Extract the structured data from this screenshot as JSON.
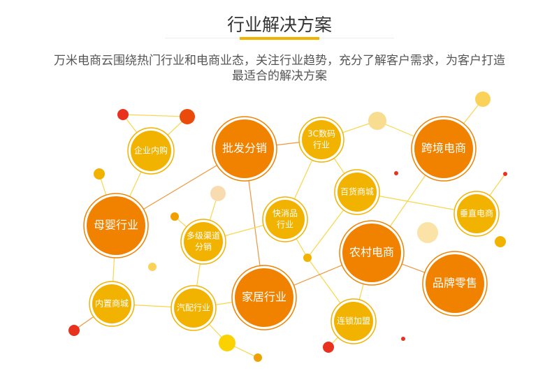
{
  "header": {
    "title": "行业解决方案",
    "description_line1": "万米电商云围绕热门行业和电商业态，关注行业趋势，充分了解客户需求，为客户打造",
    "description_line2": "最适合的解决方案"
  },
  "colors": {
    "accent": "#f0b400",
    "orange": "#f08200",
    "yellow": "#f2b200",
    "red": "#e8321e"
  },
  "nodes": [
    {
      "id": "qiye",
      "lines": [
        "企业内购"
      ],
      "kind": "yellow"
    },
    {
      "id": "pifa",
      "lines": [
        "批发分销"
      ],
      "kind": "orange"
    },
    {
      "id": "3c",
      "lines": [
        "3C数码",
        "行业"
      ],
      "kind": "yellow"
    },
    {
      "id": "kuajing",
      "lines": [
        "跨境电商"
      ],
      "kind": "orange"
    },
    {
      "id": "baihuo",
      "lines": [
        "百货商城"
      ],
      "kind": "yellow"
    },
    {
      "id": "chuizhi",
      "lines": [
        "垂直电商"
      ],
      "kind": "yellow"
    },
    {
      "id": "muying",
      "lines": [
        "母婴行业"
      ],
      "kind": "orange"
    },
    {
      "id": "duoji",
      "lines": [
        "多级渠道",
        "分销"
      ],
      "kind": "yellow"
    },
    {
      "id": "kuaixiao",
      "lines": [
        "快消品",
        "行业"
      ],
      "kind": "yellow"
    },
    {
      "id": "nongcun",
      "lines": [
        "农村电商"
      ],
      "kind": "orange"
    },
    {
      "id": "pinpai",
      "lines": [
        "品牌零售"
      ],
      "kind": "orange"
    },
    {
      "id": "neizhi",
      "lines": [
        "内置商城"
      ],
      "kind": "yellow"
    },
    {
      "id": "qipei",
      "lines": [
        "汽配行业"
      ],
      "kind": "yellow"
    },
    {
      "id": "jiaju",
      "lines": [
        "家居行业"
      ],
      "kind": "orange"
    },
    {
      "id": "liansuo",
      "lines": [
        "连锁加盟"
      ],
      "kind": "yellow"
    }
  ]
}
